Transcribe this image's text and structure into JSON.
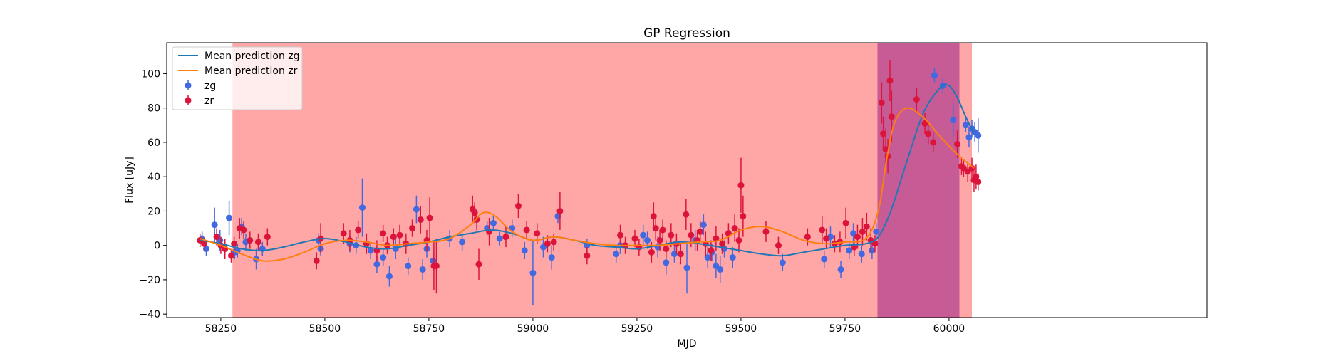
{
  "chart_data": {
    "type": "scatter",
    "title": "GP Regression",
    "xlabel": "MJD",
    "ylabel": "Flux [uJy]",
    "xlim": [
      58120,
      60620
    ],
    "ylim": [
      -42,
      118
    ],
    "xticks": [
      58250,
      58500,
      58750,
      59000,
      59250,
      59500,
      59750,
      60000
    ],
    "yticks": [
      -40,
      -20,
      0,
      20,
      40,
      60,
      80,
      100
    ],
    "legend_position": "top-left",
    "legend": [
      "Mean prediction zg",
      "Mean prediction zr",
      "zg",
      "zr"
    ],
    "colors": {
      "zg": "#4169e1",
      "zr": "#dc143c",
      "pred_zg": "#1f77b4",
      "pred_zr": "#ff7f0e",
      "span_outer": "#ff0000",
      "span_inner": "#800080"
    },
    "shaded_regions": [
      {
        "x0": 58278,
        "x1": 60055,
        "color": "#ff0000",
        "alpha": 0.35
      },
      {
        "x0": 59828,
        "x1": 60025,
        "color": "#800080",
        "alpha": 0.45
      }
    ],
    "series": [
      {
        "name": "Mean prediction zg",
        "kind": "line",
        "color": "#1f77b4",
        "x": [
          58200,
          58250,
          58300,
          58350,
          58400,
          58450,
          58500,
          58550,
          58600,
          58650,
          58700,
          58750,
          58800,
          58850,
          58900,
          58950,
          59000,
          59050,
          59100,
          59150,
          59200,
          59250,
          59300,
          59350,
          59400,
          59450,
          59500,
          59550,
          59600,
          59650,
          59700,
          59750,
          59800,
          59830,
          59860,
          59900,
          59940,
          59980,
          60000,
          60020,
          60040,
          60060
        ],
        "y": [
          3,
          1,
          -2,
          -3,
          -1,
          2,
          4,
          2,
          -1,
          -2,
          0,
          2,
          5,
          7,
          9,
          7,
          3,
          5,
          3,
          0,
          -1,
          -2,
          0,
          2,
          1,
          -1,
          -3,
          -5,
          -6,
          -4,
          -2,
          0,
          1,
          5,
          20,
          50,
          78,
          92,
          93,
          86,
          75,
          65
        ]
      },
      {
        "name": "Mean prediction zr",
        "kind": "line",
        "color": "#ff7f0e",
        "x": [
          58200,
          58250,
          58300,
          58350,
          58400,
          58450,
          58500,
          58550,
          58600,
          58650,
          58700,
          58750,
          58800,
          58850,
          58880,
          58910,
          58950,
          59000,
          59050,
          59100,
          59150,
          59200,
          59250,
          59300,
          59350,
          59400,
          59450,
          59500,
          59550,
          59600,
          59650,
          59700,
          59750,
          59800,
          59830,
          59850,
          59870,
          59900,
          59940,
          59980,
          60020,
          60060
        ],
        "y": [
          4,
          0,
          -5,
          -9,
          -8,
          -4,
          1,
          3,
          2,
          0,
          1,
          2,
          4,
          12,
          19,
          17,
          8,
          3,
          5,
          3,
          1,
          0,
          0,
          0,
          1,
          2,
          3,
          9,
          11,
          8,
          3,
          1,
          2,
          4,
          20,
          50,
          72,
          80,
          74,
          63,
          53,
          45
        ]
      },
      {
        "name": "zg",
        "kind": "errorbar",
        "color": "#4169e1",
        "x": [
          58205,
          58215,
          58235,
          58248,
          58270,
          58283,
          58290,
          58300,
          58310,
          58335,
          58350,
          58485,
          58490,
          58560,
          58575,
          58590,
          58610,
          58625,
          58640,
          58655,
          58670,
          58700,
          58720,
          58735,
          58745,
          58760,
          58800,
          58830,
          58890,
          58905,
          58920,
          58950,
          58980,
          59000,
          59025,
          59045,
          59060,
          59130,
          59200,
          59210,
          59265,
          59275,
          59300,
          59320,
          59340,
          59370,
          59390,
          59410,
          59420,
          59430,
          59440,
          59450,
          59460,
          59480,
          59600,
          59700,
          59715,
          59740,
          59760,
          59770,
          59790,
          59815,
          59825,
          59965,
          59985,
          60010,
          60040,
          60048,
          60055,
          60062,
          60070
        ],
        "y": [
          4,
          -2,
          12,
          3,
          16,
          -4,
          -3,
          11,
          2,
          -8,
          -2,
          3,
          -2,
          1,
          0,
          22,
          -3,
          -11,
          -7,
          -18,
          -2,
          -12,
          21,
          -14,
          -2,
          -9,
          4,
          2,
          10,
          13,
          4,
          10,
          -3,
          -16,
          -1,
          -7,
          17,
          0,
          -5,
          0,
          6,
          3,
          -1,
          -10,
          -5,
          -13,
          3,
          12,
          -7,
          -4,
          -12,
          -14,
          -2,
          -7,
          -10,
          -8,
          5,
          -14,
          -3,
          7,
          -5,
          -3,
          8,
          99,
          93,
          73,
          70,
          63,
          68,
          66,
          64
        ],
        "err": [
          4,
          4,
          10,
          6,
          10,
          4,
          4,
          5,
          5,
          6,
          4,
          4,
          4,
          5,
          5,
          17,
          5,
          5,
          5,
          6,
          6,
          5,
          8,
          6,
          5,
          6,
          5,
          5,
          4,
          4,
          4,
          5,
          5,
          19,
          6,
          7,
          4,
          4,
          5,
          5,
          6,
          5,
          6,
          7,
          5,
          15,
          6,
          6,
          6,
          5,
          7,
          8,
          5,
          6,
          5,
          5,
          6,
          5,
          5,
          6,
          5,
          5,
          5,
          4,
          4,
          10,
          4,
          6,
          5,
          6,
          10
        ]
      },
      {
        "name": "zr",
        "kind": "errorbar",
        "color": "#dc143c",
        "x": [
          58200,
          58210,
          58240,
          58250,
          58260,
          58275,
          58282,
          58295,
          58305,
          58320,
          58340,
          58362,
          58480,
          58490,
          58545,
          58560,
          58580,
          58600,
          58625,
          58640,
          58650,
          58665,
          58680,
          58695,
          58710,
          58730,
          58745,
          58752,
          58762,
          58768,
          58855,
          58860,
          58865,
          58870,
          58895,
          58935,
          58965,
          58985,
          59010,
          59035,
          59050,
          59065,
          59130,
          59210,
          59222,
          59245,
          59255,
          59285,
          59290,
          59295,
          59305,
          59312,
          59320,
          59332,
          59345,
          59355,
          59368,
          59380,
          59395,
          59402,
          59415,
          59428,
          59440,
          59455,
          59470,
          59485,
          59495,
          59500,
          59505,
          59560,
          59590,
          59660,
          59695,
          59705,
          59725,
          59738,
          59752,
          59772,
          59780,
          59792,
          59802,
          59812,
          59822,
          59838,
          59842,
          59848,
          59853,
          59858,
          59862,
          59922,
          59942,
          59950,
          59962,
          60020,
          60030,
          60035,
          60045,
          60055,
          60060,
          60065,
          60070
        ],
        "y": [
          3,
          1,
          5,
          0,
          -2,
          -6,
          1,
          10,
          9,
          3,
          2,
          5,
          -9,
          4,
          7,
          3,
          9,
          1,
          -3,
          7,
          0,
          5,
          6,
          1,
          10,
          15,
          3,
          16,
          -12,
          -12,
          21,
          19,
          15,
          -11,
          8,
          5,
          23,
          9,
          7,
          1,
          2,
          20,
          -6,
          6,
          0,
          4,
          -1,
          -4,
          17,
          10,
          3,
          9,
          -2,
          6,
          1,
          -5,
          18,
          6,
          3,
          8,
          1,
          -3,
          4,
          1,
          7,
          10,
          3,
          35,
          17,
          8,
          0,
          5,
          9,
          4,
          1,
          2,
          13,
          -1,
          5,
          8,
          11,
          3,
          1,
          83,
          65,
          56,
          52,
          96,
          75,
          85,
          71,
          65,
          60,
          59,
          46,
          45,
          43,
          45,
          38,
          40,
          37
        ],
        "err": [
          4,
          4,
          5,
          5,
          6,
          4,
          4,
          6,
          5,
          5,
          5,
          5,
          5,
          9,
          6,
          6,
          5,
          6,
          6,
          5,
          5,
          5,
          6,
          6,
          5,
          8,
          6,
          12,
          14,
          16,
          8,
          6,
          6,
          9,
          8,
          6,
          7,
          5,
          6,
          5,
          5,
          11,
          5,
          6,
          5,
          5,
          5,
          6,
          8,
          7,
          6,
          6,
          5,
          7,
          6,
          6,
          9,
          7,
          6,
          6,
          7,
          6,
          7,
          6,
          6,
          8,
          7,
          16,
          12,
          6,
          5,
          5,
          8,
          6,
          5,
          6,
          9,
          5,
          7,
          8,
          8,
          7,
          5,
          12,
          10,
          12,
          10,
          12,
          15,
          7,
          6,
          6,
          6,
          8,
          5,
          5,
          6,
          6,
          7,
          7,
          5
        ]
      }
    ]
  }
}
